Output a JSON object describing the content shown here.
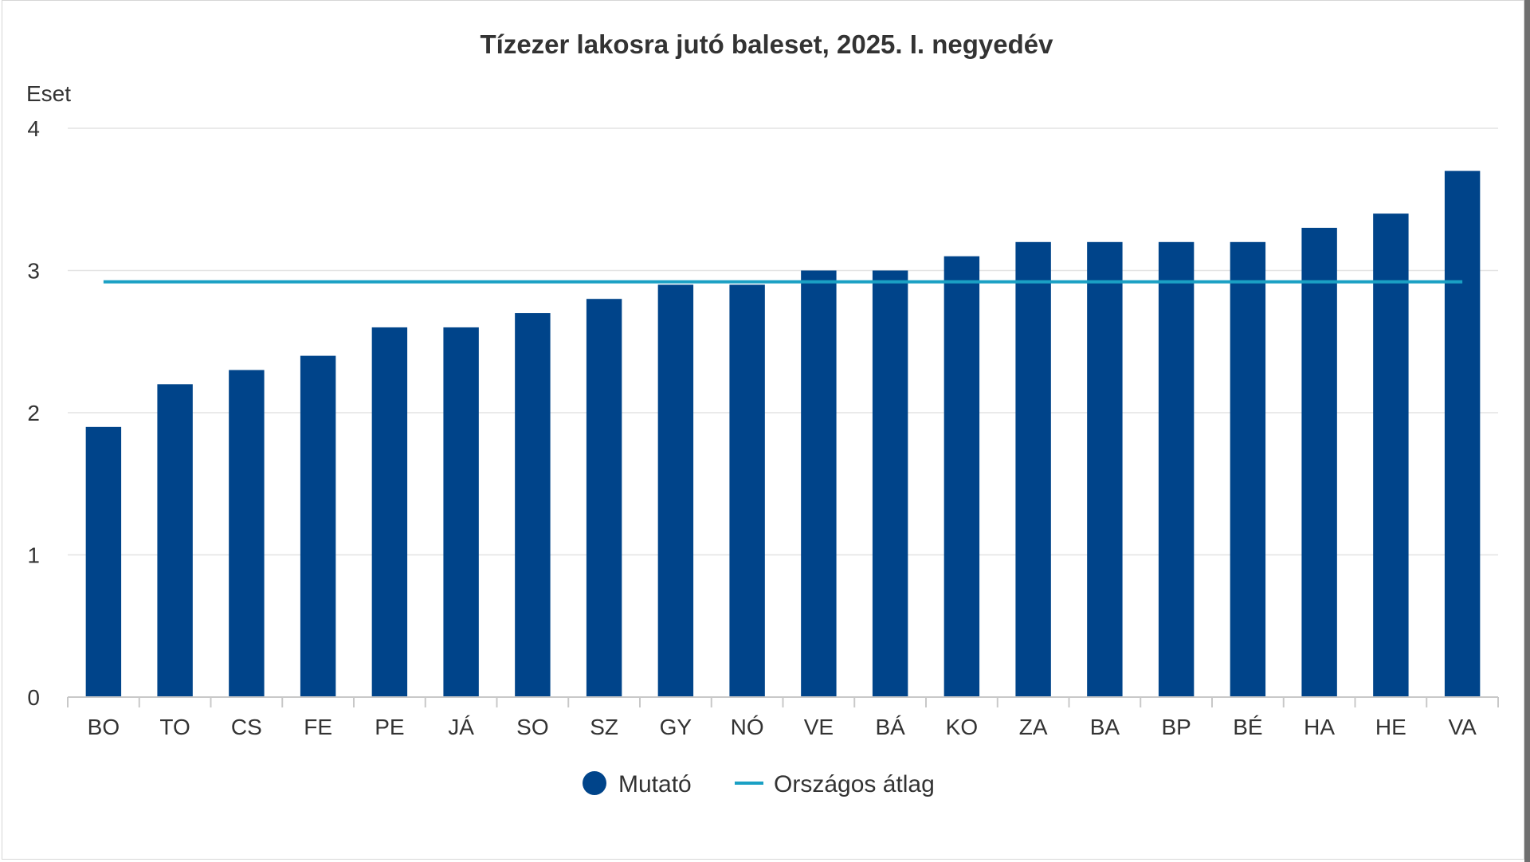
{
  "chart_data": {
    "type": "bar",
    "title": "Tízezer lakosra jutó baleset, 2025. I. negyedév",
    "ylabel": "Eset",
    "xlabel": "",
    "ylim": [
      0,
      4
    ],
    "yticks": [
      "0",
      "1",
      "2",
      "3",
      "4"
    ],
    "categories": [
      "BO",
      "TO",
      "CS",
      "FE",
      "PE",
      "JÁ",
      "SO",
      "SZ",
      "GY",
      "NÓ",
      "VE",
      "BÁ",
      "KO",
      "ZA",
      "BA",
      "BP",
      "BÉ",
      "HA",
      "HE",
      "VA"
    ],
    "series": [
      {
        "name": "Mutató",
        "type": "bar",
        "color": "#00448a",
        "values": [
          1.9,
          2.2,
          2.3,
          2.4,
          2.6,
          2.6,
          2.7,
          2.8,
          2.9,
          2.9,
          3.0,
          3.0,
          3.1,
          3.2,
          3.2,
          3.2,
          3.2,
          3.3,
          3.4,
          3.7
        ]
      },
      {
        "name": "Országos átlag",
        "type": "line",
        "color": "#1aa0c4",
        "value": 2.92
      }
    ],
    "grid": true,
    "legend_position": "bottom-center"
  }
}
